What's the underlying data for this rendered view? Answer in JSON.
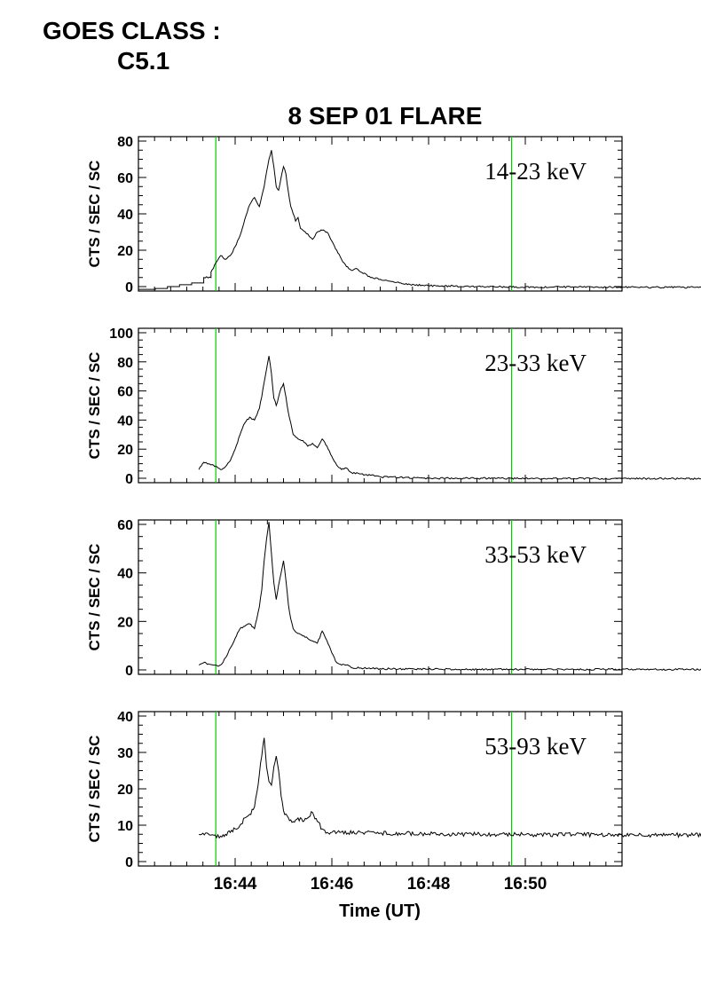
{
  "header": {
    "goes_label": "GOES CLASS :",
    "goes_class": "C5.1"
  },
  "chart_data": {
    "type": "line",
    "title": "8 SEP 01 FLARE",
    "xlabel": "Time (UT)",
    "ylabel": "CTS / SEC / SC",
    "xlim": [
      "16:42:00",
      "16:52:00"
    ],
    "xticks": [
      "16:44",
      "16:46",
      "16:48",
      "16:50"
    ],
    "marker_color": "#00cc00",
    "markers": [
      "16:43:36",
      "16:49:43"
    ],
    "line_color": "#000000",
    "panels": [
      {
        "name": "14-23 keV",
        "ylim": [
          0,
          80
        ],
        "yticks": [
          "0",
          "20",
          "40",
          "60",
          "80"
        ],
        "series": [
          [
            16.0,
            -1.5
          ],
          [
            16.35,
            -1.5
          ],
          [
            16.35,
            -1
          ],
          [
            16.6,
            -1
          ],
          [
            16.6,
            0
          ],
          [
            16.85,
            0
          ],
          [
            16.85,
            1
          ],
          [
            17.1,
            1
          ],
          [
            17.1,
            2
          ],
          [
            17.35,
            2
          ],
          [
            17.35,
            5
          ],
          [
            17.5,
            5
          ],
          [
            17.5,
            8
          ],
          [
            17.55,
            10
          ],
          [
            17.6,
            13
          ],
          [
            17.65,
            15
          ],
          [
            17.7,
            17
          ],
          [
            17.8,
            15
          ],
          [
            17.9,
            17
          ],
          [
            18.0,
            22
          ],
          [
            18.1,
            28
          ],
          [
            18.2,
            37
          ],
          [
            18.3,
            45
          ],
          [
            18.4,
            49
          ],
          [
            18.5,
            44
          ],
          [
            18.6,
            55
          ],
          [
            18.65,
            63
          ],
          [
            18.7,
            70
          ],
          [
            18.75,
            75
          ],
          [
            18.8,
            66
          ],
          [
            18.85,
            55
          ],
          [
            18.9,
            53
          ],
          [
            18.95,
            60
          ],
          [
            19.0,
            66
          ],
          [
            19.05,
            62
          ],
          [
            19.1,
            52
          ],
          [
            19.15,
            44
          ],
          [
            19.2,
            40
          ],
          [
            19.25,
            36
          ],
          [
            19.3,
            38
          ],
          [
            19.35,
            32
          ],
          [
            19.4,
            31
          ],
          [
            19.5,
            29
          ],
          [
            19.6,
            26
          ],
          [
            19.7,
            30
          ],
          [
            19.8,
            31
          ],
          [
            19.9,
            30
          ],
          [
            20.0,
            25
          ],
          [
            20.1,
            20
          ],
          [
            20.2,
            15
          ],
          [
            20.3,
            11
          ],
          [
            20.4,
            9
          ],
          [
            20.5,
            10
          ],
          [
            20.6,
            8
          ],
          [
            20.7,
            7
          ],
          [
            20.8,
            5
          ],
          [
            21.0,
            4
          ],
          [
            21.2,
            3
          ],
          [
            21.4,
            2
          ],
          [
            21.7,
            1
          ],
          [
            22.0,
            0.5
          ],
          [
            23.0,
            0
          ],
          [
            24.0,
            -0.2
          ],
          [
            25.0,
            -0.3
          ],
          [
            26.0,
            -0.3
          ],
          [
            27.0,
            -0.4
          ],
          [
            28.0,
            -0.4
          ],
          [
            29.0,
            -0.5
          ],
          [
            30.0,
            -0.5
          ],
          [
            31.0,
            -0.5
          ],
          [
            32.0,
            -0.5
          ]
        ]
      },
      {
        "name": "23-33 keV",
        "ylim": [
          0,
          100
        ],
        "yticks": [
          "0",
          "20",
          "40",
          "60",
          "80",
          "100"
        ],
        "series": [
          [
            17.25,
            6
          ],
          [
            17.35,
            11
          ],
          [
            17.45,
            10
          ],
          [
            17.55,
            9
          ],
          [
            17.65,
            7
          ],
          [
            17.7,
            6
          ],
          [
            17.8,
            8
          ],
          [
            17.9,
            12
          ],
          [
            18.0,
            20
          ],
          [
            18.1,
            30
          ],
          [
            18.2,
            38
          ],
          [
            18.3,
            42
          ],
          [
            18.4,
            40
          ],
          [
            18.5,
            48
          ],
          [
            18.55,
            56
          ],
          [
            18.6,
            66
          ],
          [
            18.65,
            75
          ],
          [
            18.7,
            84
          ],
          [
            18.75,
            72
          ],
          [
            18.8,
            55
          ],
          [
            18.85,
            50
          ],
          [
            18.9,
            56
          ],
          [
            18.95,
            62
          ],
          [
            19.0,
            65
          ],
          [
            19.05,
            56
          ],
          [
            19.1,
            45
          ],
          [
            19.15,
            38
          ],
          [
            19.2,
            30
          ],
          [
            19.3,
            27
          ],
          [
            19.4,
            26
          ],
          [
            19.5,
            22
          ],
          [
            19.6,
            24
          ],
          [
            19.7,
            21
          ],
          [
            19.8,
            27
          ],
          [
            19.9,
            22
          ],
          [
            20.0,
            15
          ],
          [
            20.1,
            9
          ],
          [
            20.2,
            6
          ],
          [
            20.3,
            7
          ],
          [
            20.4,
            4
          ],
          [
            20.6,
            3
          ],
          [
            20.8,
            2
          ],
          [
            21.0,
            1
          ],
          [
            21.5,
            0.5
          ],
          [
            22.0,
            0
          ],
          [
            23.0,
            0
          ],
          [
            24.0,
            -0.2
          ],
          [
            25.0,
            -0.2
          ],
          [
            26.0,
            -0.2
          ],
          [
            27.0,
            -0.3
          ],
          [
            28.0,
            -0.3
          ],
          [
            29.0,
            -0.3
          ],
          [
            30.0,
            -0.3
          ],
          [
            31.0,
            -0.3
          ],
          [
            32.0,
            -0.3
          ]
        ]
      },
      {
        "name": "33-53 keV",
        "ylim": [
          0,
          60
        ],
        "yticks": [
          "0",
          "20",
          "40",
          "60"
        ],
        "series": [
          [
            17.25,
            2
          ],
          [
            17.35,
            3
          ],
          [
            17.45,
            2.5
          ],
          [
            17.55,
            2
          ],
          [
            17.65,
            1.5
          ],
          [
            17.7,
            2
          ],
          [
            17.8,
            5
          ],
          [
            17.9,
            9
          ],
          [
            18.0,
            13
          ],
          [
            18.1,
            17
          ],
          [
            18.2,
            18
          ],
          [
            18.3,
            19
          ],
          [
            18.4,
            17
          ],
          [
            18.5,
            26
          ],
          [
            18.55,
            33
          ],
          [
            18.6,
            45
          ],
          [
            18.65,
            54
          ],
          [
            18.7,
            61
          ],
          [
            18.75,
            48
          ],
          [
            18.8,
            36
          ],
          [
            18.85,
            29
          ],
          [
            18.9,
            35
          ],
          [
            18.95,
            40
          ],
          [
            19.0,
            45
          ],
          [
            19.05,
            37
          ],
          [
            19.1,
            27
          ],
          [
            19.15,
            21
          ],
          [
            19.2,
            17
          ],
          [
            19.3,
            15
          ],
          [
            19.4,
            14
          ],
          [
            19.5,
            13
          ],
          [
            19.6,
            12
          ],
          [
            19.7,
            11
          ],
          [
            19.8,
            16
          ],
          [
            19.9,
            12
          ],
          [
            20.0,
            7
          ],
          [
            20.1,
            3
          ],
          [
            20.2,
            2
          ],
          [
            20.3,
            2
          ],
          [
            20.4,
            1
          ],
          [
            20.6,
            0.8
          ],
          [
            21.0,
            0.5
          ],
          [
            22.0,
            0.3
          ],
          [
            23.0,
            0.2
          ],
          [
            24.0,
            0.2
          ],
          [
            25.0,
            0.2
          ],
          [
            26.0,
            0.2
          ],
          [
            27.0,
            0.2
          ],
          [
            28.0,
            0.2
          ],
          [
            29.0,
            0.2
          ],
          [
            30.0,
            0.2
          ],
          [
            31.0,
            0.2
          ],
          [
            32.0,
            0.2
          ]
        ]
      },
      {
        "name": "53-93 keV",
        "ylim": [
          0,
          40
        ],
        "yticks": [
          "0",
          "10",
          "20",
          "30",
          "40"
        ],
        "series": [
          [
            17.25,
            7.5
          ],
          [
            17.5,
            7.3
          ],
          [
            17.7,
            7
          ],
          [
            17.8,
            7.5
          ],
          [
            17.9,
            8
          ],
          [
            18.0,
            9
          ],
          [
            18.1,
            10
          ],
          [
            18.2,
            12
          ],
          [
            18.3,
            13
          ],
          [
            18.4,
            15
          ],
          [
            18.45,
            19
          ],
          [
            18.5,
            24
          ],
          [
            18.55,
            29
          ],
          [
            18.6,
            34
          ],
          [
            18.65,
            26
          ],
          [
            18.7,
            22
          ],
          [
            18.75,
            21
          ],
          [
            18.8,
            26
          ],
          [
            18.85,
            29
          ],
          [
            18.9,
            25
          ],
          [
            18.95,
            18
          ],
          [
            19.0,
            14
          ],
          [
            19.1,
            12
          ],
          [
            19.2,
            11
          ],
          [
            19.3,
            12
          ],
          [
            19.4,
            11
          ],
          [
            19.5,
            12
          ],
          [
            19.6,
            13.5
          ],
          [
            19.7,
            11
          ],
          [
            19.8,
            9
          ],
          [
            19.9,
            8
          ],
          [
            20.0,
            8
          ],
          [
            21.0,
            7.8
          ],
          [
            22.0,
            7.6
          ],
          [
            23.0,
            7.5
          ],
          [
            24.0,
            7.4
          ],
          [
            25.0,
            7.4
          ],
          [
            26.0,
            7.3
          ],
          [
            27.0,
            7.3
          ],
          [
            28.0,
            7.3
          ],
          [
            29.0,
            7.2
          ],
          [
            30.0,
            7.2
          ],
          [
            31.0,
            7.2
          ],
          [
            32.0,
            7.2
          ]
        ]
      }
    ]
  }
}
